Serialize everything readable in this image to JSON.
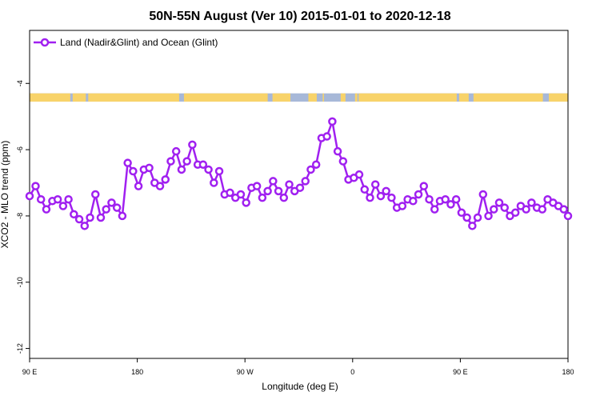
{
  "chart_data": {
    "type": "line",
    "title": "50N-55N August (Ver 10)   2015-01-01 to 2020-12-18",
    "xlabel": "Longitude (deg E)",
    "ylabel": "XCO2 - MLO trend (ppm)",
    "x_tick_labels": [
      "90 E",
      "180",
      "90 W",
      "0",
      "90 E",
      "180"
    ],
    "x_ticks": [
      90,
      180,
      270,
      360,
      450,
      540
    ],
    "xlim": [
      90,
      540
    ],
    "y_tick_labels": [
      "-4",
      "-6",
      "-8",
      "-10",
      "-12"
    ],
    "y_ticks": [
      -4,
      -6,
      -8,
      -10,
      -12
    ],
    "ylim": [
      -12.3,
      -2.4
    ],
    "legend_position": "top-left",
    "grid": false,
    "series_color": "#a020f0",
    "land_color": "#f8d36a",
    "ocean_color": "#a7b8d8",
    "series": [
      {
        "name": "Land (Nadir&Glint) and Ocean (Glint)",
        "x": [
          90,
          95,
          99.5,
          104,
          109,
          113.5,
          118,
          122.5,
          127,
          131.5,
          136,
          140.5,
          145,
          149.5,
          154,
          158.5,
          163,
          167.5,
          172,
          176.5,
          181,
          185.5,
          190,
          194.5,
          199,
          203.5,
          208,
          212.5,
          217,
          221.5,
          226,
          230.5,
          235,
          239.5,
          244,
          248.5,
          253,
          257.5,
          262,
          266.5,
          271,
          275.5,
          280,
          284.5,
          289,
          293.5,
          298,
          302.5,
          307,
          311.5,
          316,
          320.5,
          325,
          329.5,
          334,
          338.5,
          343,
          347.5,
          352,
          356.5,
          361,
          365.5,
          370,
          374.5,
          379,
          383.5,
          388,
          392.5,
          397,
          401.5,
          406,
          410.5,
          415,
          419.5,
          424,
          428.5,
          433,
          437.5,
          442,
          446.5,
          451,
          455.5,
          460,
          464.5,
          469,
          473.5,
          478,
          482.5,
          487,
          491.5,
          496,
          500.5,
          505,
          509.5,
          514,
          518.5,
          523,
          527.5,
          532,
          536.5,
          540
        ],
        "values": [
          -7.4,
          -7.1,
          -7.5,
          -7.8,
          -7.55,
          -7.5,
          -7.7,
          -7.5,
          -7.95,
          -8.1,
          -8.3,
          -8.05,
          -7.35,
          -8.05,
          -7.8,
          -7.6,
          -7.75,
          -8.0,
          -6.4,
          -6.65,
          -7.1,
          -6.6,
          -6.55,
          -7.0,
          -7.1,
          -6.9,
          -6.35,
          -6.05,
          -6.6,
          -6.35,
          -5.85,
          -6.45,
          -6.45,
          -6.6,
          -7.0,
          -6.65,
          -7.35,
          -7.3,
          -7.45,
          -7.35,
          -7.6,
          -7.15,
          -7.1,
          -7.45,
          -7.25,
          -6.95,
          -7.25,
          -7.45,
          -7.05,
          -7.25,
          -7.15,
          -6.95,
          -6.6,
          -6.45,
          -5.65,
          -5.6,
          -5.15,
          -6.05,
          -6.35,
          -6.9,
          -6.85,
          -6.75,
          -7.2,
          -7.45,
          -7.05,
          -7.4,
          -7.25,
          -7.45,
          -7.75,
          -7.7,
          -7.5,
          -7.55,
          -7.35,
          -7.1,
          -7.5,
          -7.8,
          -7.55,
          -7.5,
          -7.65,
          -7.5,
          -7.9,
          -8.05,
          -8.3,
          -8.05,
          -7.35,
          -8.0,
          -7.8,
          -7.6,
          -7.75,
          -8.0,
          -7.9,
          -7.7,
          -7.8,
          -7.6,
          -7.75,
          -7.8,
          -7.5,
          -7.6,
          -7.7,
          -7.8,
          -8.0
        ]
      }
    ],
    "land_ocean_band": {
      "y_range": [
        -4.3,
        -4.55
      ],
      "land_segments": [
        [
          90,
          124
        ],
        [
          126,
          137
        ],
        [
          139,
          215
        ],
        [
          219,
          289
        ],
        [
          293,
          308
        ],
        [
          323,
          330
        ],
        [
          335,
          336
        ],
        [
          350,
          354
        ],
        [
          362,
          364
        ],
        [
          365,
          447
        ],
        [
          449,
          457
        ],
        [
          461,
          519
        ],
        [
          524,
          540
        ]
      ]
    }
  }
}
